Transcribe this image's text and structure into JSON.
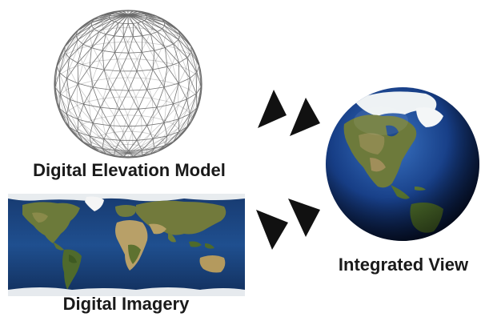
{
  "labels": {
    "dem": "Digital Elevation Model",
    "imagery": "Digital Imagery",
    "integrated": "Integrated View"
  },
  "icons": {
    "wireframe": "wireframe-sphere-icon",
    "map": "world-map-icon",
    "globe": "earth-globe-icon",
    "arrow": "triangle-arrow-icon"
  },
  "colors": {
    "ocean_dark": "#0b2a5a",
    "ocean": "#1f4f8f",
    "land": "#6e7a3a",
    "desert": "#b9a06a",
    "ice": "#f2f2f2",
    "wire": "#555555"
  }
}
